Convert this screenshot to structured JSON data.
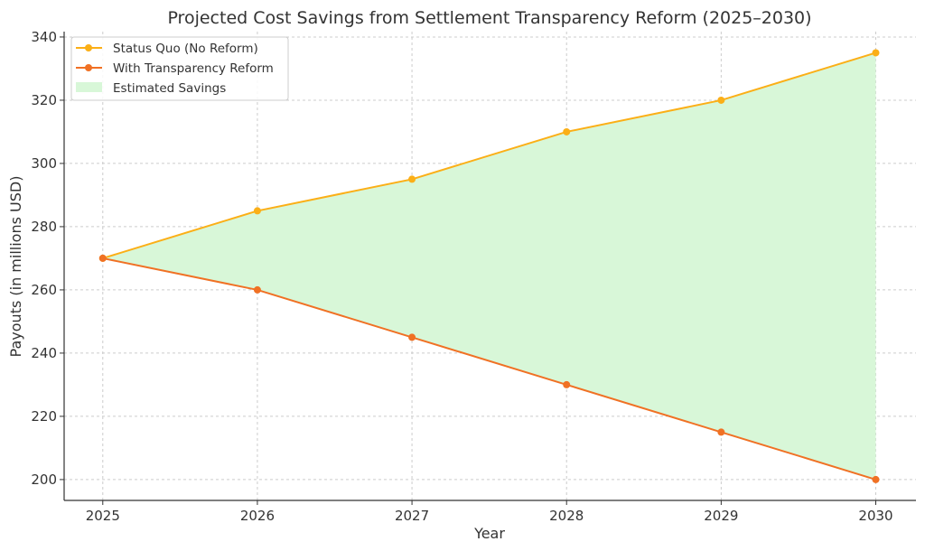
{
  "chart_data": {
    "type": "line",
    "title": "Projected Cost Savings from Settlement Transparency Reform (2025–2030)",
    "xlabel": "Year",
    "ylabel": "Payouts (in millions USD)",
    "x": [
      2025,
      2026,
      2027,
      2028,
      2029,
      2030
    ],
    "xticks": [
      "2025",
      "2026",
      "2027",
      "2028",
      "2029",
      "2030"
    ],
    "yticks": [
      "200",
      "220",
      "240",
      "260",
      "280",
      "300",
      "320",
      "340"
    ],
    "ylim": [
      193.4,
      341.7
    ],
    "xlim": [
      2024.75,
      2030.26
    ],
    "grid": true,
    "legend_position": "top-left",
    "series": [
      {
        "name": "Status Quo (No Reform)",
        "values": [
          270,
          285,
          295,
          310,
          320,
          335
        ],
        "color": "#FBAF17"
      },
      {
        "name": "With Transparency Reform",
        "values": [
          270,
          260,
          245,
          230,
          215,
          200
        ],
        "color": "#F07124"
      }
    ],
    "fill": {
      "name": "Estimated Savings",
      "between": [
        "Status Quo (No Reform)",
        "With Transparency Reform"
      ],
      "color": "#D8F7D8"
    }
  }
}
